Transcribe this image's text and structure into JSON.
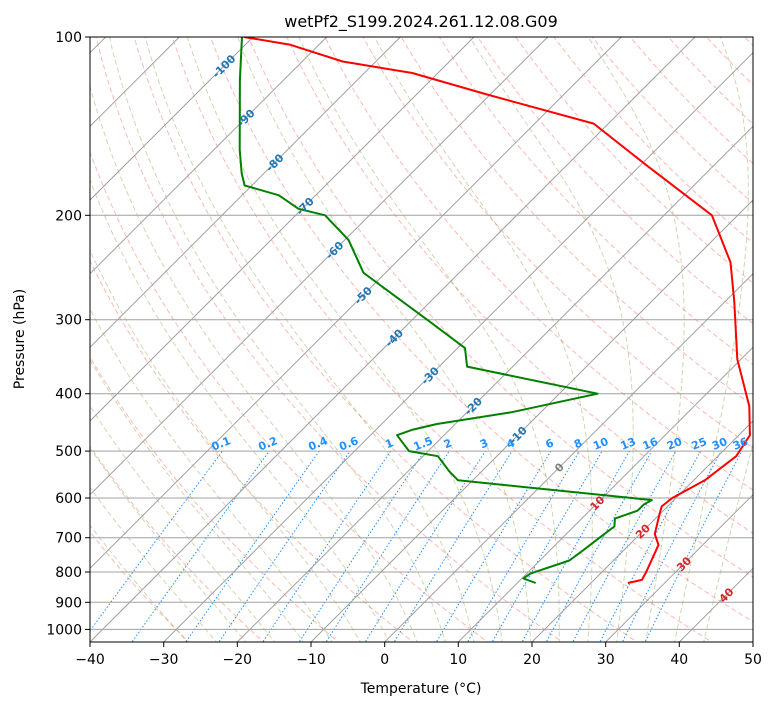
{
  "chart_data": {
    "type": "line",
    "title": "wetPf2_S199.2024.261.12.08.G09",
    "xlabel": "Temperature (°C)",
    "ylabel": "Pressure (hPa)",
    "xlim": [
      -40,
      50
    ],
    "ylim": [
      1050,
      100
    ],
    "y_scale": "log",
    "skew": "temperature lines skewed 45°",
    "grid": true,
    "x_ticks": [
      -40,
      -30,
      -20,
      -10,
      0,
      10,
      20,
      30,
      40,
      50
    ],
    "y_ticks": [
      100,
      200,
      300,
      400,
      500,
      600,
      700,
      800,
      900,
      1000
    ],
    "isotherm_labels": [
      {
        "text": "-100",
        "t": -100,
        "p": 112
      },
      {
        "text": "-90",
        "t": -90,
        "p": 137
      },
      {
        "text": "-80",
        "t": -80,
        "p": 163
      },
      {
        "text": "-70",
        "t": -70,
        "p": 193
      },
      {
        "text": "-60",
        "t": -60,
        "p": 229
      },
      {
        "text": "-50",
        "t": -50,
        "p": 273
      },
      {
        "text": "-40",
        "t": -40,
        "p": 322
      },
      {
        "text": "-30",
        "t": -30,
        "p": 373
      },
      {
        "text": "-20",
        "t": -20,
        "p": 420
      },
      {
        "text": "-10",
        "t": -10,
        "p": 470
      },
      {
        "text": "0",
        "t": 0,
        "p": 533
      },
      {
        "text": "10",
        "t": 10,
        "p": 612
      },
      {
        "text": "20",
        "t": 20,
        "p": 683
      },
      {
        "text": "30",
        "t": 30,
        "p": 775
      },
      {
        "text": "40",
        "t": 40,
        "p": 875
      }
    ],
    "mixing_ratio_labels": [
      "0.1",
      "0.2",
      "0.4",
      "0.6",
      "1",
      "1.5",
      "2",
      "3",
      "4",
      "6",
      "8",
      "10",
      "13",
      "16",
      "20",
      "25",
      "30",
      "36"
    ],
    "colors": {
      "temperature": "#ff0000",
      "dewpoint": "#008000",
      "isotherm_label": "#1f77b4",
      "isotherm_label_warm": "#d62728",
      "zero_label": "#7f7f7f",
      "mixing_ratio": "#1e90ff",
      "dry_adiabat": "#fa8072",
      "moist_adiabat": "#6b8e23",
      "grid": "#a0a0a0"
    },
    "series": [
      {
        "name": "",
        "role": "temperature",
        "x": [
          25,
          26.5,
          26,
          24,
          22,
          20,
          19.2,
          19.5,
          21.5,
          22.5,
          21.5,
          17.5,
          9.5,
          1.3,
          -4.6,
          -13.5,
          -29,
          -42,
          -60.5,
          -73.5,
          -84.5,
          -94,
          -101.2
        ],
        "p": [
          835,
          825,
          800,
          720,
          690,
          640,
          620,
          600,
          560,
          510,
          470,
          420,
          350,
          280,
          240,
          200,
          165,
          140,
          125,
          115,
          110,
          103,
          100
        ]
      },
      {
        "name": "",
        "role": "dewpoint",
        "x": [
          12.5,
          10.2,
          10.5,
          14,
          14.5,
          15,
          15.5,
          14.5,
          16.5,
          16.5,
          17,
          14,
          -2,
          -12,
          -14.5,
          -18,
          -22.6,
          -26.4,
          -25,
          -22.5,
          -14,
          -4.8,
          -26.2,
          -29,
          -38,
          -53,
          -59.5,
          -66,
          -70.5,
          -75,
          -81,
          -83,
          -86.5,
          -96,
          -101.5
        ],
        "p": [
          835,
          820,
          805,
          765,
          735,
          700,
          670,
          650,
          630,
          615,
          605,
          600,
          575,
          560,
          540,
          510,
          500,
          470,
          460,
          450,
          430,
          400,
          360,
          335,
          300,
          250,
          220,
          200,
          195,
          185,
          178,
          170,
          155,
          118,
          100
        ]
      }
    ]
  }
}
